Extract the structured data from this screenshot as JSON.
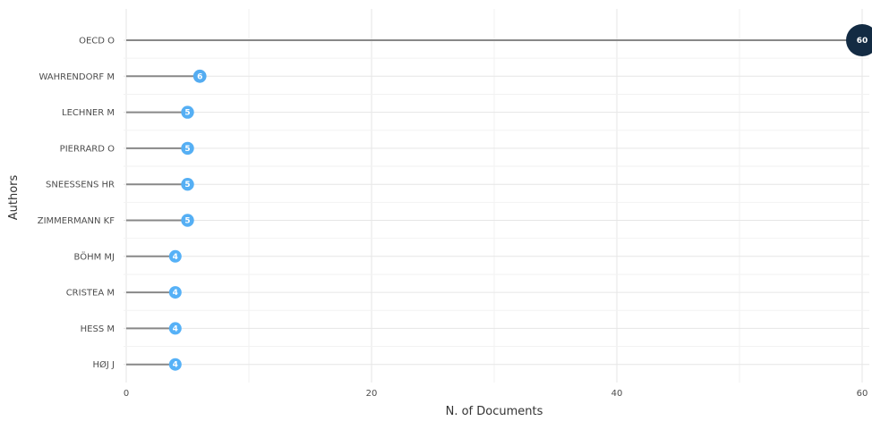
{
  "chart_data": {
    "type": "lollipop",
    "categories": [
      "OECD O",
      "WAHRENDORF M",
      "LECHNER M",
      "PIERRARD O",
      "SNEESSENS HR",
      "ZIMMERMANN KF",
      "BÖHM MJ",
      "CRISTEA M",
      "HESS M",
      "HØJ J"
    ],
    "values": [
      60,
      6,
      5,
      5,
      5,
      5,
      4,
      4,
      4,
      4
    ],
    "value_labels": [
      "60",
      "6",
      "5",
      "5",
      "5",
      "5",
      "4",
      "4",
      "4",
      "4"
    ],
    "xlabel": "N. of Documents",
    "ylabel": "Authors",
    "xlim": [
      0,
      60
    ],
    "x_ticks": [
      0,
      20,
      40,
      60
    ],
    "x_tick_labels": [
      "0",
      "20",
      "40",
      "60"
    ],
    "grid": true,
    "orientation": "horizontal",
    "colors": {
      "point_low": "#56B1F7",
      "point_high": "#132B43",
      "stem": "#888888",
      "grid": "#e6e6e6"
    }
  }
}
